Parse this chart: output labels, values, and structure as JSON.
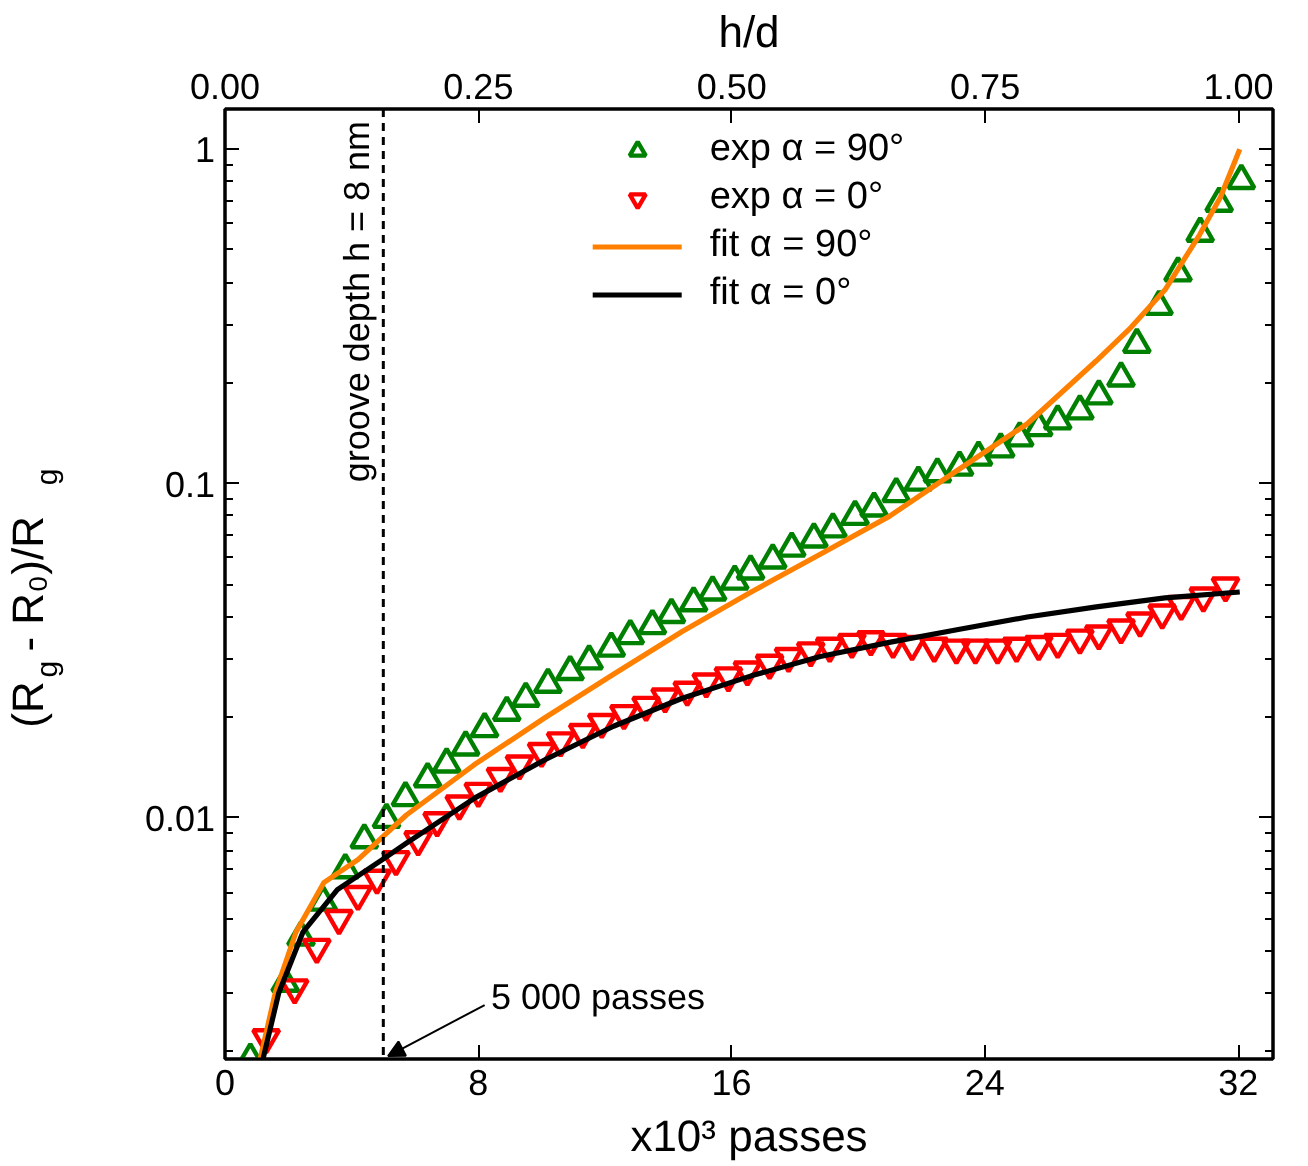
{
  "chart_data": {
    "type": "scatter",
    "xlabel": "x10³ passes",
    "ylabel": "(R$_{g}$ - R₀)/R$_{g}$",
    "x2label": "h/d",
    "xlim": [
      0,
      33.1
    ],
    "xticks": [
      0,
      8,
      16,
      24,
      32
    ],
    "x2lim": [
      0,
      1.034
    ],
    "x2ticks": [
      {
        "value": 0,
        "label": "0.00"
      },
      {
        "value": 0.25,
        "label": "0.25"
      },
      {
        "value": 0.5,
        "label": "0.50"
      },
      {
        "value": 0.75,
        "label": "0.75"
      },
      {
        "value": 1,
        "label": "1.00"
      }
    ],
    "ylim": [
      0.0019,
      1.32
    ],
    "yticks": [
      0.01,
      0.1,
      1
    ],
    "log": "y",
    "grid": false,
    "legend": "top",
    "series": [
      {
        "name": "exp α = 90°",
        "marker": "triangle",
        "color": "#008000",
        "x": [
          0.8,
          1.9,
          2.4,
          3.1,
          3.8,
          4.4,
          5.1,
          5.7,
          6.4,
          7.0,
          7.6,
          8.2,
          8.9,
          9.5,
          10.2,
          10.9,
          11.5,
          12.2,
          12.8,
          13.5,
          14.1,
          14.8,
          15.4,
          16.1,
          16.6,
          17.3,
          17.9,
          18.6,
          19.2,
          19.9,
          20.5,
          21.2,
          21.9,
          22.5,
          23.2,
          23.8,
          24.5,
          25.1,
          25.7,
          26.3,
          27.0,
          27.6,
          28.3,
          28.8,
          29.5,
          30.1,
          30.8,
          31.4,
          32.1
        ],
        "values": [
          0.0019,
          0.0032,
          0.0044,
          0.0056,
          0.007,
          0.0086,
          0.0099,
          0.0115,
          0.0131,
          0.0145,
          0.0163,
          0.0185,
          0.0207,
          0.0228,
          0.0251,
          0.0274,
          0.0295,
          0.0322,
          0.0351,
          0.0376,
          0.0406,
          0.044,
          0.0474,
          0.0511,
          0.0548,
          0.0591,
          0.0641,
          0.0683,
          0.0732,
          0.0798,
          0.0845,
          0.0933,
          0.101,
          0.107,
          0.112,
          0.12,
          0.127,
          0.137,
          0.147,
          0.154,
          0.165,
          0.183,
          0.207,
          0.261,
          0.339,
          0.427,
          0.561,
          0.69,
          0.807
        ]
      },
      {
        "name": "exp α = 0°",
        "marker": "triangle_down",
        "color": "#ff0000",
        "x": [
          1.3,
          2.2,
          2.9,
          3.6,
          4.2,
          4.8,
          5.4,
          6.1,
          6.7,
          7.4,
          8.0,
          8.7,
          9.3,
          10.0,
          10.6,
          11.3,
          11.9,
          12.6,
          13.3,
          13.9,
          14.6,
          15.2,
          15.9,
          16.5,
          17.2,
          17.8,
          18.5,
          19.1,
          19.8,
          20.4,
          21.1,
          21.7,
          22.4,
          23.1,
          23.7,
          24.4,
          25.0,
          25.7,
          26.3,
          27.0,
          27.6,
          28.3,
          28.9,
          29.6,
          30.2,
          30.9,
          31.6
        ],
        "values": [
          0.0022,
          0.0031,
          0.0041,
          0.005,
          0.0059,
          0.0066,
          0.0075,
          0.0086,
          0.0098,
          0.011,
          0.012,
          0.0133,
          0.0145,
          0.0158,
          0.017,
          0.018,
          0.0193,
          0.0205,
          0.0217,
          0.023,
          0.0241,
          0.0255,
          0.0266,
          0.0277,
          0.029,
          0.0304,
          0.0316,
          0.0326,
          0.0335,
          0.0341,
          0.0335,
          0.033,
          0.0326,
          0.0322,
          0.0322,
          0.0322,
          0.0326,
          0.033,
          0.0335,
          0.0345,
          0.0355,
          0.037,
          0.0388,
          0.041,
          0.0435,
          0.0461,
          0.0494
        ]
      },
      {
        "name": "fit α = 90°",
        "type": "line",
        "line_style": "solid",
        "color": "#ff8000",
        "x": [
          1.11,
          1.59,
          2.24,
          3.12,
          4.2,
          5.73,
          7.91,
          10.09,
          12.27,
          14.44,
          16.62,
          18.8,
          20.98,
          23.16,
          25.34,
          27.52,
          28.61,
          29.69,
          30.78,
          31.44,
          32.05
        ],
        "values": [
          0.0019,
          0.003,
          0.00455,
          0.0064,
          0.0075,
          0.0102,
          0.0145,
          0.0199,
          0.0269,
          0.0361,
          0.0474,
          0.0615,
          0.0798,
          0.11,
          0.151,
          0.233,
          0.293,
          0.38,
          0.555,
          0.719,
          1.0
        ]
      },
      {
        "name": "fit α = 0°",
        "type": "line",
        "line_style": "solid",
        "color": "#000000",
        "x": [
          1.2,
          1.7,
          2.46,
          3.55,
          4.97,
          5.73,
          7.91,
          10.09,
          12.27,
          14.44,
          16.62,
          18.8,
          20.98,
          23.16,
          25.34,
          27.52,
          29.69,
          32.05
        ],
        "values": [
          0.0019,
          0.003,
          0.00455,
          0.0061,
          0.0075,
          0.0084,
          0.0115,
          0.0149,
          0.0188,
          0.0228,
          0.0266,
          0.0304,
          0.0335,
          0.0366,
          0.0399,
          0.0428,
          0.0455,
          0.0474
        ]
      }
    ],
    "ref_lines": [
      {
        "axis": "x",
        "value": 5,
        "color": "#000000",
        "line_style": "dashed"
      }
    ],
    "annotations": [
      {
        "text": "groove depth h = 8 nm",
        "x": 5
      },
      {
        "text": "5 000 passes",
        "x": 5,
        "y": 0.0019
      }
    ]
  }
}
